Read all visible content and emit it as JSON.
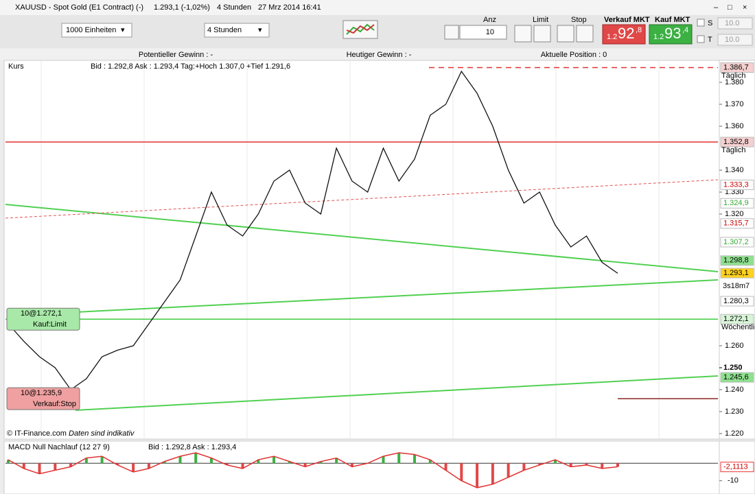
{
  "window": {
    "title": "XAUUSD - Spot Gold (E1 Contract) (-)",
    "price": "1.293,1 (-1,02%)",
    "interval": "4 Stunden",
    "timestamp": "27 Mrz 2014 16:41"
  },
  "toolbar": {
    "units": "1000 Einheiten",
    "period": "4 Stunden",
    "qty_label": "Anz",
    "qty": "10",
    "limit": "Limit",
    "stop": "Stop",
    "sell_label": "Verkauf MKT",
    "sell_big": "1.2",
    "sell_digits": "92",
    "sell_frac": ",8",
    "buy_label": "Kauf MKT",
    "buy_big": "1.2",
    "buy_digits": "93",
    "buy_frac": ",4",
    "s": "S",
    "s_value": "10.0",
    "t": "T",
    "t_value": "10.0"
  },
  "status": {
    "potential": "Potentieller Gewinn : -",
    "today": "Heutiger Gewinn : -",
    "position": "Aktuelle Position : 0"
  },
  "chart": {
    "label": "Kurs",
    "quote": "Bid : 1.292,8 Ask : 1.293,4 Tag:+Hoch 1.307,0 +Tief 1.291,6",
    "ylim": [
      1.2175,
      1.39
    ],
    "yticks": [
      {
        "value": 1.38,
        "label": "1.380"
      },
      {
        "value": 1.37,
        "label": "1.370"
      },
      {
        "value": 1.36,
        "label": "1.360"
      },
      {
        "value": 1.34,
        "label": "1.340"
      },
      {
        "value": 1.33,
        "label": "1.330"
      },
      {
        "value": 1.32,
        "label": "1.320"
      },
      {
        "value": 1.26,
        "label": "1.260"
      },
      {
        "value": 1.24,
        "label": "1.240"
      },
      {
        "value": 1.23,
        "label": "1.230"
      },
      {
        "value": 1.22,
        "label": "1.220"
      }
    ],
    "bold_tick": {
      "value": 1.25,
      "label": "1.250"
    },
    "levels": [
      {
        "value": 1.3867,
        "color": "#e03030",
        "dash": true
      },
      {
        "value": 1.3528,
        "color": "#e03030",
        "dash": false
      },
      {
        "value": 1.2721,
        "color": "#3ccc3c",
        "dash": false
      },
      {
        "value": 1.2359,
        "color": "#8b2020",
        "dash": false
      }
    ],
    "price_tags": [
      {
        "value": 1.3867,
        "label": "1.386,7",
        "note": "Täglich",
        "bg": "#f6d0d0",
        "fg": "#000000"
      },
      {
        "value": 1.3528,
        "label": "1.352,8",
        "note": "Täglich",
        "bg": "#f6d0d0",
        "fg": "#000000"
      },
      {
        "value": 1.3333,
        "label": "1.333,3",
        "bg": "#ffffff",
        "fg": "#cc0000"
      },
      {
        "value": 1.3249,
        "label": "1.324,9",
        "bg": "#ffffff",
        "fg": "#33aa33"
      },
      {
        "value": 1.3157,
        "label": "1.315,7",
        "bg": "#ffffff",
        "fg": "#cc0000"
      },
      {
        "value": 1.3072,
        "label": "1.307,2",
        "bg": "#ffffff",
        "fg": "#33aa33"
      },
      {
        "value": 1.2988,
        "label": "1.298,8",
        "bg": "#8fe08f",
        "fg": "#000000"
      },
      {
        "value": 1.2931,
        "label": "1.293,1",
        "bg": "#ffd21f",
        "fg": "#000000"
      },
      {
        "value": 1.2803,
        "label": "1.280,3",
        "bg": "#ffffff",
        "fg": "#000000"
      },
      {
        "value": 1.2721,
        "label": "1.272,1",
        "note": "Wöchentli",
        "bg": "#d8f5d8",
        "fg": "#000000"
      },
      {
        "value": 1.2456,
        "label": "1.245,6",
        "bg": "#8fe08f",
        "fg": "#000000"
      }
    ],
    "countdown": "3s18m7",
    "orders": [
      {
        "text": "10@1.272,1",
        "type": "Kauf:Limit",
        "value": 1.2721,
        "color": "#a8e8a8"
      },
      {
        "text": "10@1.235,9",
        "type": "Verkauf:Stop",
        "value": 1.2359,
        "color": "#f0a0a0"
      }
    ],
    "price": [
      1.27,
      1.262,
      1.255,
      1.25,
      1.24,
      1.245,
      1.255,
      1.258,
      1.26,
      1.27,
      1.28,
      1.29,
      1.31,
      1.33,
      1.315,
      1.31,
      1.32,
      1.335,
      1.34,
      1.325,
      1.32,
      1.35,
      1.335,
      1.33,
      1.35,
      1.335,
      1.345,
      1.365,
      1.37,
      1.385,
      1.375,
      1.36,
      1.34,
      1.325,
      1.33,
      1.315,
      1.305,
      1.31,
      1.298,
      1.293
    ]
  },
  "footer": {
    "copyright": "© IT-Finance.com",
    "note": "Daten sind indikativ"
  },
  "macd": {
    "label": "MACD Null Nachlauf (12 27 9)",
    "quote": "Bid : 1.292,8 Ask : 1.293,4",
    "ylim": [
      -16,
      6
    ],
    "ticks": [
      -10
    ],
    "last": {
      "value": -2.1113,
      "label": "-2,1113"
    },
    "values": [
      2,
      -3,
      -6,
      -4,
      -2,
      3,
      4,
      -1,
      -5,
      -3,
      1,
      4,
      6,
      3,
      -1,
      -3,
      2,
      4,
      1,
      -2,
      1,
      3,
      -2,
      0,
      4,
      6,
      5,
      2,
      -4,
      -10,
      -14,
      -12,
      -8,
      -4,
      -1,
      2,
      -2,
      -1,
      -3,
      -2
    ]
  }
}
